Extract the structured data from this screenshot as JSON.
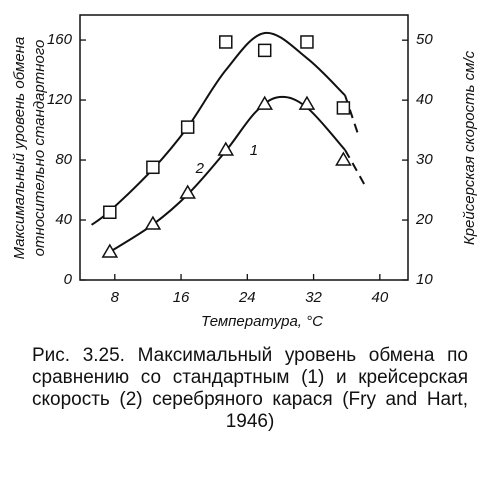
{
  "chart_data": {
    "type": "scatter",
    "x_label": "Температура, °С",
    "y_label": [
      "Максимальный уровень обмена",
      "относительно стандартного"
    ],
    "y2_label": "Крейсерская скорость см/с",
    "xlim": [
      3.8,
      43.4
    ],
    "xticks": [
      8,
      16,
      24,
      32,
      40
    ],
    "ylim": [
      0,
      176.7
    ],
    "yticks": [
      0,
      40,
      80,
      120,
      160
    ],
    "y2lim": [
      10,
      54.2
    ],
    "y2ticks": [
      10,
      20,
      30,
      40,
      50
    ],
    "color": "#111111",
    "series": [
      {
        "name": "1",
        "marker": "triangle",
        "x": [
          7.4,
          12.6,
          16.8,
          21.4,
          26.1,
          31.2,
          35.6
        ],
        "values": [
          18.7,
          37.3,
          58,
          86.7,
          117.3,
          117.3,
          80
        ],
        "fit_x": [
          7.4,
          12.6,
          16.8,
          21.4,
          25,
          27.9,
          31.2,
          35.8
        ],
        "fit_values": [
          18.7,
          37,
          57,
          86,
          112,
          122,
          115,
          86.7
        ],
        "dashed_x": [
          35.8,
          37,
          38.2
        ],
        "dashed_values": [
          86.7,
          75,
          63
        ]
      },
      {
        "name": "2",
        "marker": "square",
        "axis": "y2",
        "x": [
          7.4,
          12.6,
          16.8,
          21.4,
          26.1,
          31.2,
          35.6
        ],
        "values": [
          21.3,
          28.8,
          35.5,
          49.7,
          48.3,
          49.7,
          38.7
        ],
        "fit_x": [
          5.2,
          7.4,
          12.6,
          16.8,
          21.4,
          26.1,
          31.2,
          35.8
        ],
        "fit_values": [
          19.2,
          21.5,
          28.5,
          35.5,
          45,
          51.2,
          47,
          40.8
        ],
        "dashed_x": [
          35.8,
          36.6,
          37.4
        ],
        "dashed_values": [
          40.8,
          37.5,
          34.2
        ]
      }
    ]
  },
  "caption": "Рис. 3.25. Максимальный уровень обмена по сравнению со стандартным (1) и крейсерская скорость (2) серебряного карася (Fry and Hart, 1946)"
}
